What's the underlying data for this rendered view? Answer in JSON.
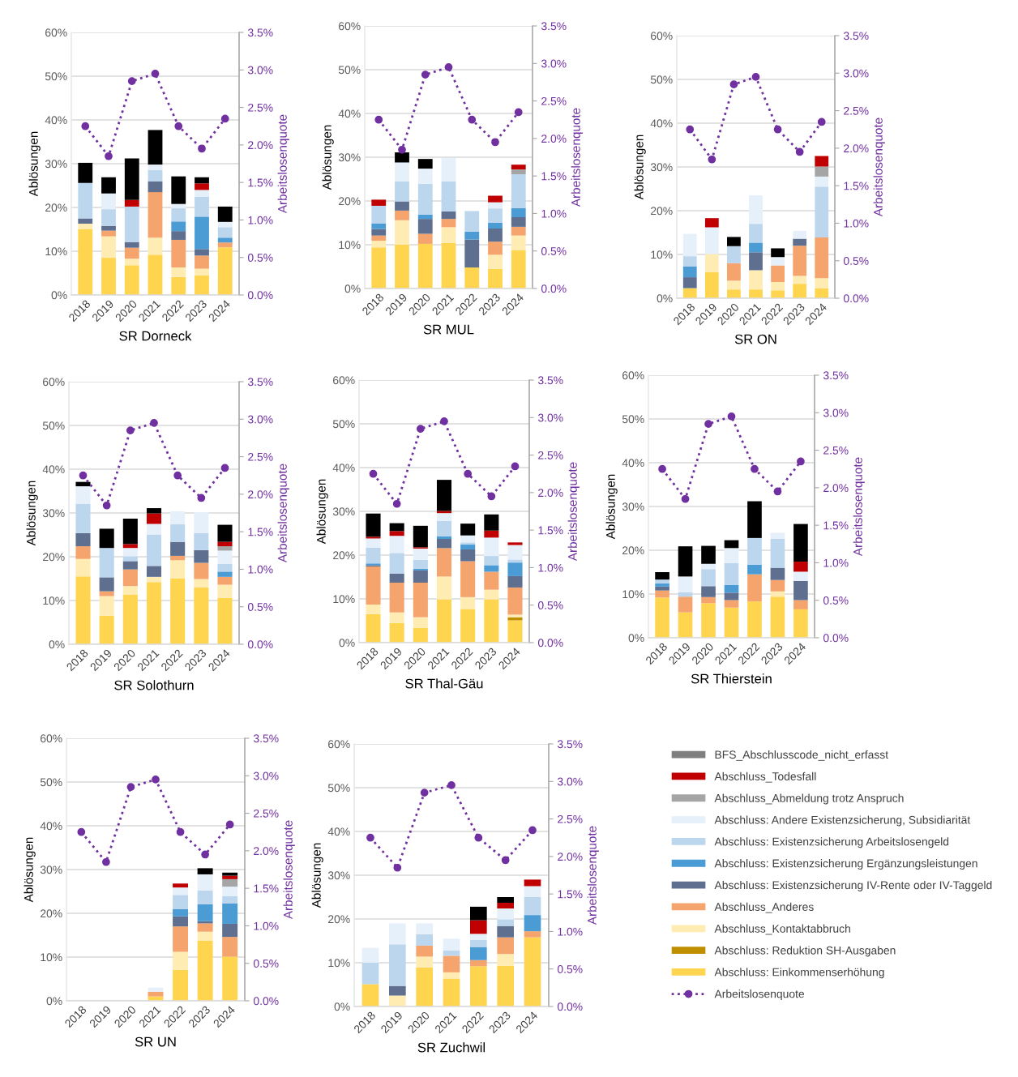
{
  "chart_data": [
    {
      "type": "bar",
      "stacked": true,
      "xlabel": "SR Dorneck",
      "ylabel": "Ablösungen",
      "y2label": "Arbeitslosenquote",
      "categories": [
        "2018",
        "2019",
        "2020",
        "2021",
        "2022",
        "2023",
        "2024"
      ],
      "ylim": [
        0,
        60
      ],
      "yticks": [
        {
          "value": 0,
          "label": "0%"
        },
        {
          "value": 10,
          "label": "10%"
        },
        {
          "value": 20,
          "label": "20%"
        },
        {
          "value": 30,
          "label": "30%"
        },
        {
          "value": 40,
          "label": "40%"
        },
        {
          "value": 50,
          "label": "50%"
        },
        {
          "value": 60,
          "label": "60%"
        }
      ],
      "y2lim": [
        0,
        3.5
      ],
      "y2ticks": [
        {
          "value": 0,
          "label": "0.0%"
        },
        {
          "value": 0.5,
          "label": "0.5%"
        },
        {
          "value": 1,
          "label": "1.0%"
        },
        {
          "value": 1.5,
          "label": "1.5%"
        },
        {
          "value": 2,
          "label": "2.0%"
        },
        {
          "value": 2.5,
          "label": "2.5%"
        },
        {
          "value": 3,
          "label": "3.0%"
        },
        {
          "value": 3.5,
          "label": "3.5%"
        }
      ],
      "grid": "y",
      "series": [
        {
          "color": "#ffd54f",
          "values": [
            15.1,
            8.5,
            6.8,
            9.2,
            4.1,
            4.5,
            10.9
          ]
        },
        {
          "color": "#bf8f00",
          "values": [
            0,
            0,
            0,
            0,
            0,
            0,
            0
          ]
        },
        {
          "color": "#ffecb3",
          "values": [
            1.2,
            4.9,
            1.5,
            3.9,
            2.2,
            1.5,
            0
          ]
        },
        {
          "color": "#f4a46c",
          "values": [
            0,
            1.3,
            2.5,
            10.4,
            6.3,
            3.0,
            1.1
          ]
        },
        {
          "color": "#5f6f8f",
          "values": [
            1.2,
            1.1,
            1.3,
            2.5,
            2.0,
            1.5,
            0
          ]
        },
        {
          "color": "#4b9bd5",
          "values": [
            0,
            0,
            0,
            0,
            2.2,
            7.4,
            1.1
          ]
        },
        {
          "color": "#bcd6ee",
          "values": [
            8.1,
            3.8,
            8.1,
            2.6,
            3.0,
            4.6,
            2.4
          ]
        },
        {
          "color": "#e6f0fa",
          "values": [
            0,
            3.6,
            0,
            1.2,
            1.0,
            1.5,
            1.2
          ]
        },
        {
          "color": "#a5a5a5",
          "values": [
            0,
            0,
            0,
            0,
            0,
            0,
            0
          ]
        },
        {
          "color": "#c00000",
          "values": [
            0,
            0,
            1.5,
            0,
            0,
            1.5,
            0
          ]
        },
        {
          "color": "#7f7f7f",
          "values": [
            0,
            0,
            0,
            0,
            0,
            0,
            0
          ]
        },
        {
          "color": "#000000",
          "values": [
            4.6,
            3.7,
            9.5,
            7.9,
            6.3,
            1.4,
            3.5
          ]
        },
        {
          "type": "line",
          "axis": "y2",
          "color": "#7030a0",
          "marker": "circle",
          "line_style": "dotted",
          "values": [
            2.25,
            1.85,
            2.85,
            2.95,
            2.25,
            1.95,
            2.35
          ]
        }
      ]
    },
    {
      "type": "bar",
      "stacked": true,
      "xlabel": "SR MUL",
      "ylabel": "Ablösungen",
      "y2label": "Arbeitslosenquote",
      "categories": [
        "2018",
        "2019",
        "2020",
        "2021",
        "2022",
        "2023",
        "2024"
      ],
      "ylim": [
        0,
        60
      ],
      "yticks": [
        {
          "value": 0,
          "label": "0%"
        },
        {
          "value": 10,
          "label": "10%"
        },
        {
          "value": 20,
          "label": "20%"
        },
        {
          "value": 30,
          "label": "30%"
        },
        {
          "value": 40,
          "label": "40%"
        },
        {
          "value": 50,
          "label": "50%"
        },
        {
          "value": 60,
          "label": "60%"
        }
      ],
      "y2lim": [
        0,
        3.5
      ],
      "y2ticks": [
        {
          "value": 0,
          "label": "0.0%"
        },
        {
          "value": 0.5,
          "label": "0.5%"
        },
        {
          "value": 1,
          "label": "1.0%"
        },
        {
          "value": 1.5,
          "label": "1.5%"
        },
        {
          "value": 2,
          "label": "2.0%"
        },
        {
          "value": 2.5,
          "label": "2.5%"
        },
        {
          "value": 3,
          "label": "3.0%"
        },
        {
          "value": 3.5,
          "label": "3.5%"
        }
      ],
      "grid": "y",
      "series": [
        {
          "color": "#ffd54f",
          "values": [
            9.4,
            10.0,
            10.2,
            10.4,
            4.8,
            4.5,
            8.7
          ]
        },
        {
          "color": "#bf8f00",
          "values": [
            0,
            0,
            0,
            0,
            0,
            0,
            0
          ]
        },
        {
          "color": "#ffecb3",
          "values": [
            1.5,
            5.6,
            0,
            3.6,
            0,
            3.2,
            3.4
          ]
        },
        {
          "color": "#f4a46c",
          "values": [
            1.2,
            2.2,
            2.3,
            1.9,
            0,
            3.0,
            2.0
          ]
        },
        {
          "color": "#5f6f8f",
          "values": [
            1.5,
            2.1,
            3.4,
            1.7,
            6.4,
            3.0,
            2.2
          ]
        },
        {
          "color": "#4b9bd5",
          "values": [
            1.3,
            0,
            1.0,
            0,
            1.8,
            1.3,
            2.1
          ]
        },
        {
          "color": "#bcd6ee",
          "values": [
            4.0,
            4.6,
            7.0,
            6.9,
            4.7,
            3.3,
            7.7
          ]
        },
        {
          "color": "#e6f0fa",
          "values": [
            0,
            4.3,
            3.5,
            5.3,
            0,
            1.4,
            0
          ]
        },
        {
          "color": "#a5a5a5",
          "values": [
            0,
            0,
            0,
            0,
            0,
            0,
            1.1
          ]
        },
        {
          "color": "#c00000",
          "values": [
            1.4,
            0,
            0,
            0,
            0,
            1.5,
            1.1
          ]
        },
        {
          "color": "#7f7f7f",
          "values": [
            0,
            0,
            0,
            0,
            0,
            0,
            0
          ]
        },
        {
          "color": "#000000",
          "values": [
            0,
            2.3,
            2.2,
            0,
            0,
            0,
            0
          ]
        },
        {
          "type": "line",
          "axis": "y2",
          "color": "#7030a0",
          "marker": "circle",
          "line_style": "dotted",
          "values": [
            2.25,
            1.85,
            2.85,
            2.95,
            2.25,
            1.95,
            2.35
          ]
        }
      ]
    },
    {
      "type": "bar",
      "stacked": true,
      "xlabel": "SR ON",
      "ylabel": "Ablösungen",
      "y2label": "Arbeitslosenquote",
      "categories": [
        "2018",
        "2019",
        "2020",
        "2021",
        "2022",
        "2023",
        "2024"
      ],
      "ylim": [
        0,
        60
      ],
      "yticks": [
        {
          "value": 0,
          "label": "0%"
        },
        {
          "value": 10,
          "label": "10%"
        },
        {
          "value": 20,
          "label": "20%"
        },
        {
          "value": 30,
          "label": "30%"
        },
        {
          "value": 40,
          "label": "40%"
        },
        {
          "value": 50,
          "label": "50%"
        },
        {
          "value": 60,
          "label": "60%"
        }
      ],
      "y2lim": [
        0,
        3.5
      ],
      "y2ticks": [
        {
          "value": 0,
          "label": "0.0%"
        },
        {
          "value": 0.5,
          "label": "0.5%"
        },
        {
          "value": 1,
          "label": "1.0%"
        },
        {
          "value": 1.5,
          "label": "1.5%"
        },
        {
          "value": 2,
          "label": "2.0%"
        },
        {
          "value": 2.5,
          "label": "2.5%"
        },
        {
          "value": 3,
          "label": "3.0%"
        },
        {
          "value": 3.5,
          "label": "3.5%"
        }
      ],
      "grid": "y",
      "series": [
        {
          "color": "#ffd54f",
          "values": [
            2.3,
            6.0,
            2.0,
            2.0,
            1.8,
            3.3,
            2.3
          ]
        },
        {
          "color": "#bf8f00",
          "values": [
            0,
            0,
            0,
            0,
            0,
            0,
            0
          ]
        },
        {
          "color": "#ffecb3",
          "values": [
            0,
            4.1,
            2.0,
            4.4,
            1.9,
            1.8,
            2.3
          ]
        },
        {
          "color": "#f4a46c",
          "values": [
            0,
            0,
            4.0,
            0,
            3.8,
            6.9,
            9.3
          ]
        },
        {
          "color": "#5f6f8f",
          "values": [
            2.5,
            0,
            0,
            4.1,
            0,
            1.6,
            0
          ]
        },
        {
          "color": "#4b9bd5",
          "values": [
            2.5,
            0,
            0,
            2.2,
            0,
            0,
            0
          ]
        },
        {
          "color": "#bcd6ee",
          "values": [
            2.3,
            0,
            3.9,
            4.3,
            0,
            0,
            11.6
          ]
        },
        {
          "color": "#e6f0fa",
          "values": [
            5.1,
            6.1,
            0,
            6.5,
            1.9,
            1.8,
            2.3
          ]
        },
        {
          "color": "#a5a5a5",
          "values": [
            0,
            0,
            0,
            0,
            0,
            0,
            2.3
          ]
        },
        {
          "color": "#c00000",
          "values": [
            0,
            2.1,
            0,
            0,
            0,
            0,
            2.4
          ]
        },
        {
          "color": "#7f7f7f",
          "values": [
            0,
            0,
            0,
            0,
            0,
            0,
            0
          ]
        },
        {
          "color": "#000000",
          "values": [
            0,
            0,
            2.1,
            0,
            2.0,
            0,
            0
          ]
        },
        {
          "type": "line",
          "axis": "y2",
          "color": "#7030a0",
          "marker": "circle",
          "line_style": "dotted",
          "values": [
            2.25,
            1.85,
            2.85,
            2.95,
            2.25,
            1.95,
            2.35
          ]
        }
      ]
    },
    {
      "type": "bar",
      "stacked": true,
      "xlabel": "SR Solothurn",
      "ylabel": "Ablösungen",
      "y2label": "Arbeitslosenquote",
      "categories": [
        "2018",
        "2019",
        "2020",
        "2021",
        "2022",
        "2023",
        "2024"
      ],
      "ylim": [
        0,
        60
      ],
      "yticks": [
        {
          "value": 0,
          "label": "0%"
        },
        {
          "value": 10,
          "label": "10%"
        },
        {
          "value": 20,
          "label": "20%"
        },
        {
          "value": 30,
          "label": "30%"
        },
        {
          "value": 40,
          "label": "40%"
        },
        {
          "value": 50,
          "label": "50%"
        },
        {
          "value": 60,
          "label": "60%"
        }
      ],
      "y2lim": [
        0,
        3.5
      ],
      "y2ticks": [
        {
          "value": 0,
          "label": "0.0%"
        },
        {
          "value": 0.5,
          "label": "0.5%"
        },
        {
          "value": 1,
          "label": "1.0%"
        },
        {
          "value": 1.5,
          "label": "1.5%"
        },
        {
          "value": 2,
          "label": "2.0%"
        },
        {
          "value": 2.5,
          "label": "2.5%"
        },
        {
          "value": 3,
          "label": "3.0%"
        },
        {
          "value": 3.5,
          "label": "3.5%"
        }
      ],
      "grid": "y",
      "series": [
        {
          "color": "#ffd54f",
          "values": [
            15.5,
            6.5,
            11.4,
            14.2,
            15.1,
            13.0,
            10.6
          ]
        },
        {
          "color": "#bf8f00",
          "values": [
            0,
            0,
            0,
            0,
            0,
            0,
            0
          ]
        },
        {
          "color": "#ffecb3",
          "values": [
            4.0,
            4.5,
            1.9,
            1.2,
            4.1,
            1.9,
            3.0
          ]
        },
        {
          "color": "#f4a46c",
          "values": [
            2.9,
            1.1,
            3.8,
            0,
            1.0,
            3.7,
            1.8
          ]
        },
        {
          "color": "#5f6f8f",
          "values": [
            3.0,
            3.2,
            1.9,
            2.5,
            3.2,
            2.9,
            0
          ]
        },
        {
          "color": "#4b9bd5",
          "values": [
            0,
            0,
            0,
            0,
            0,
            0,
            1.2
          ]
        },
        {
          "color": "#bcd6ee",
          "values": [
            6.7,
            6.7,
            1.1,
            7.2,
            4.0,
            3.9,
            1.8
          ]
        },
        {
          "color": "#e6f0fa",
          "values": [
            4.0,
            0,
            1.9,
            2.4,
            3.0,
            4.8,
            3.0
          ]
        },
        {
          "color": "#a5a5a5",
          "values": [
            0,
            0,
            0,
            0,
            0,
            0,
            1.0
          ]
        },
        {
          "color": "#c00000",
          "values": [
            0,
            0,
            0.9,
            2.4,
            0,
            0,
            1.0
          ]
        },
        {
          "color": "#7f7f7f",
          "values": [
            0,
            0,
            0,
            0,
            0,
            0,
            0
          ]
        },
        {
          "color": "#000000",
          "values": [
            1.0,
            4.4,
            5.8,
            1.2,
            0,
            0,
            3.9
          ]
        },
        {
          "type": "line",
          "axis": "y2",
          "color": "#7030a0",
          "marker": "circle",
          "line_style": "dotted",
          "values": [
            2.25,
            1.85,
            2.85,
            2.95,
            2.25,
            1.95,
            2.35
          ]
        }
      ]
    },
    {
      "type": "bar",
      "stacked": true,
      "xlabel": "SR Thal-Gäu",
      "ylabel": "Ablösungen",
      "y2label": "Arbeitslosenquote",
      "categories": [
        "2018",
        "2019",
        "2020",
        "2021",
        "2022",
        "2023",
        "2024"
      ],
      "ylim": [
        0,
        60
      ],
      "yticks": [
        {
          "value": 0,
          "label": "0%"
        },
        {
          "value": 10,
          "label": "10%"
        },
        {
          "value": 20,
          "label": "20%"
        },
        {
          "value": 30,
          "label": "30%"
        },
        {
          "value": 40,
          "label": "40%"
        },
        {
          "value": 50,
          "label": "50%"
        },
        {
          "value": 60,
          "label": "60%"
        }
      ],
      "y2lim": [
        0,
        3.5
      ],
      "y2ticks": [
        {
          "value": 0,
          "label": "0.0%"
        },
        {
          "value": 0.5,
          "label": "0.5%"
        },
        {
          "value": 1,
          "label": "1.0%"
        },
        {
          "value": 1.5,
          "label": "1.5%"
        },
        {
          "value": 2,
          "label": "2.0%"
        },
        {
          "value": 2.5,
          "label": "2.5%"
        },
        {
          "value": 3,
          "label": "3.0%"
        },
        {
          "value": 3.5,
          "label": "3.5%"
        }
      ],
      "grid": "y",
      "series": [
        {
          "color": "#ffd54f",
          "values": [
            6.5,
            4.5,
            3.4,
            9.9,
            7.7,
            9.9,
            5.1
          ]
        },
        {
          "color": "#bf8f00",
          "values": [
            0,
            0,
            0,
            0,
            0,
            0,
            0.7
          ]
        },
        {
          "color": "#ffecb3",
          "values": [
            2.2,
            2.4,
            2.4,
            5.2,
            2.7,
            2.2,
            0.6
          ]
        },
        {
          "color": "#f4a46c",
          "values": [
            8.7,
            6.8,
            7.9,
            6.5,
            8.2,
            4.1,
            6.2
          ]
        },
        {
          "color": "#5f6f8f",
          "values": [
            0.3,
            2.1,
            2.8,
            2.1,
            2.7,
            0,
            2.6
          ]
        },
        {
          "color": "#4b9bd5",
          "values": [
            0.4,
            0,
            0.4,
            0.6,
            1.1,
            1.5,
            3.1
          ]
        },
        {
          "color": "#bcd6ee",
          "values": [
            3.6,
            4.7,
            2.0,
            3.5,
            0.5,
            2.1,
            0.7
          ]
        },
        {
          "color": "#e6f0fa",
          "values": [
            2.1,
            3.9,
            2.6,
            1.8,
            1.6,
            4.2,
            3.3
          ]
        },
        {
          "color": "#a5a5a5",
          "values": [
            0,
            0,
            0,
            0,
            0,
            0,
            0
          ]
        },
        {
          "color": "#c00000",
          "values": [
            0.4,
            1.1,
            0.3,
            0.5,
            0,
            1.6,
            0.6
          ]
        },
        {
          "color": "#7f7f7f",
          "values": [
            0,
            0,
            0,
            0,
            0,
            0,
            0
          ]
        },
        {
          "color": "#000000",
          "values": [
            5.3,
            1.8,
            4.9,
            7.1,
            2.7,
            3.7,
            0
          ]
        },
        {
          "type": "line",
          "axis": "y2",
          "color": "#7030a0",
          "marker": "circle",
          "line_style": "dotted",
          "values": [
            2.25,
            1.85,
            2.85,
            2.95,
            2.25,
            1.95,
            2.35
          ]
        }
      ]
    },
    {
      "type": "bar",
      "stacked": true,
      "xlabel": "SR Thierstein",
      "ylabel": "Ablösungen",
      "y2label": "Arbeitslosenquote",
      "categories": [
        "2018",
        "2019",
        "2020",
        "2021",
        "2022",
        "2023",
        "2024"
      ],
      "ylim": [
        0,
        60
      ],
      "yticks": [
        {
          "value": 0,
          "label": "0%"
        },
        {
          "value": 10,
          "label": "10%"
        },
        {
          "value": 20,
          "label": "20%"
        },
        {
          "value": 30,
          "label": "30%"
        },
        {
          "value": 40,
          "label": "40%"
        },
        {
          "value": 50,
          "label": "50%"
        },
        {
          "value": 60,
          "label": "60%"
        }
      ],
      "y2lim": [
        0,
        3.5
      ],
      "y2ticks": [
        {
          "value": 0,
          "label": "0.0%"
        },
        {
          "value": 0.5,
          "label": "0.5%"
        },
        {
          "value": 1,
          "label": "1.0%"
        },
        {
          "value": 1.5,
          "label": "1.5%"
        },
        {
          "value": 2,
          "label": "2.0%"
        },
        {
          "value": 2.5,
          "label": "2.5%"
        },
        {
          "value": 3,
          "label": "3.0%"
        },
        {
          "value": 3.5,
          "label": "3.5%"
        }
      ],
      "grid": "y",
      "series": [
        {
          "color": "#ffd54f",
          "values": [
            9.2,
            5.8,
            7.9,
            6.9,
            8.3,
            9.4,
            6.5
          ]
        },
        {
          "color": "#bf8f00",
          "values": [
            0,
            0,
            0,
            0,
            0,
            0,
            0
          ]
        },
        {
          "color": "#ffecb3",
          "values": [
            0,
            0,
            0,
            0,
            0,
            1.2,
            0
          ]
        },
        {
          "color": "#f4a46c",
          "values": [
            1.6,
            3.6,
            1.4,
            1.7,
            6.2,
            2.6,
            2.1
          ]
        },
        {
          "color": "#5f6f8f",
          "values": [
            0.9,
            0,
            2.5,
            1.7,
            0,
            2.8,
            4.4
          ]
        },
        {
          "color": "#4b9bd5",
          "values": [
            0.7,
            0,
            0,
            1.8,
            2.2,
            0,
            0
          ]
        },
        {
          "color": "#bcd6ee",
          "values": [
            0.9,
            1.0,
            3.9,
            5.0,
            6.1,
            6.6,
            0
          ]
        },
        {
          "color": "#e6f0fa",
          "values": [
            0,
            3.6,
            1.2,
            3.4,
            0,
            1.4,
            2.1
          ]
        },
        {
          "color": "#a5a5a5",
          "values": [
            0,
            0,
            0,
            0,
            0,
            0,
            0
          ]
        },
        {
          "color": "#c00000",
          "values": [
            0,
            0,
            0,
            0,
            0,
            0,
            2.3
          ]
        },
        {
          "color": "#7f7f7f",
          "values": [
            0,
            0,
            0,
            0,
            0,
            0,
            0
          ]
        },
        {
          "color": "#000000",
          "values": [
            1.7,
            6.9,
            4.1,
            1.8,
            8.4,
            0,
            8.6
          ]
        },
        {
          "type": "line",
          "axis": "y2",
          "color": "#7030a0",
          "marker": "circle",
          "line_style": "dotted",
          "values": [
            2.25,
            1.85,
            2.85,
            2.95,
            2.25,
            1.95,
            2.35
          ]
        }
      ]
    },
    {
      "type": "bar",
      "stacked": true,
      "xlabel": "SR UN",
      "ylabel": "Ablösungen",
      "y2label": "Arbeitslosenquote",
      "categories": [
        "2018",
        "2019",
        "2020",
        "2021",
        "2022",
        "2023",
        "2024"
      ],
      "ylim": [
        0,
        60
      ],
      "yticks": [
        {
          "value": 0,
          "label": "0%"
        },
        {
          "value": 10,
          "label": "10%"
        },
        {
          "value": 20,
          "label": "20%"
        },
        {
          "value": 30,
          "label": "30%"
        },
        {
          "value": 40,
          "label": "40%"
        },
        {
          "value": 50,
          "label": "50%"
        },
        {
          "value": 60,
          "label": "60%"
        }
      ],
      "y2lim": [
        0,
        3.5
      ],
      "y2ticks": [
        {
          "value": 0,
          "label": "0.0%"
        },
        {
          "value": 0.5,
          "label": "0.5%"
        },
        {
          "value": 1,
          "label": "1.0%"
        },
        {
          "value": 1.5,
          "label": "1.5%"
        },
        {
          "value": 2,
          "label": "2.0%"
        },
        {
          "value": 2.5,
          "label": "2.5%"
        },
        {
          "value": 3,
          "label": "3.0%"
        },
        {
          "value": 3.5,
          "label": "3.5%"
        }
      ],
      "grid": "y",
      "series": [
        {
          "color": "#ffd54f",
          "values": [
            0,
            0,
            0,
            1.0,
            7.1,
            13.8,
            10.1
          ]
        },
        {
          "color": "#bf8f00",
          "values": [
            0,
            0,
            0,
            0,
            0,
            0,
            0
          ]
        },
        {
          "color": "#ffecb3",
          "values": [
            0,
            0,
            0,
            0,
            4.1,
            2.0,
            0
          ]
        },
        {
          "color": "#f4a46c",
          "values": [
            0,
            0,
            0,
            1.1,
            5.8,
            1.9,
            4.5
          ]
        },
        {
          "color": "#5f6f8f",
          "values": [
            0,
            0,
            0,
            0,
            2.3,
            0.5,
            3.0
          ]
        },
        {
          "color": "#4b9bd5",
          "values": [
            0,
            0,
            0,
            0,
            1.7,
            3.9,
            4.7
          ]
        },
        {
          "color": "#bcd6ee",
          "values": [
            0,
            0,
            0,
            0,
            3.2,
            3.1,
            1.6
          ]
        },
        {
          "color": "#e6f0fa",
          "values": [
            0,
            0,
            0,
            0.9,
            1.7,
            3.7,
            2.2
          ]
        },
        {
          "color": "#a5a5a5",
          "values": [
            0,
            0,
            0,
            0,
            0,
            0,
            1.7
          ]
        },
        {
          "color": "#c00000",
          "values": [
            0,
            0,
            0,
            0,
            0.9,
            0,
            0.8
          ]
        },
        {
          "color": "#7f7f7f",
          "values": [
            0,
            0,
            0,
            0,
            0,
            0,
            0
          ]
        },
        {
          "color": "#000000",
          "values": [
            0,
            0,
            0,
            0,
            0,
            1.4,
            0.7
          ]
        },
        {
          "type": "line",
          "axis": "y2",
          "color": "#7030a0",
          "marker": "circle",
          "line_style": "dotted",
          "values": [
            2.25,
            1.85,
            2.85,
            2.95,
            2.25,
            1.95,
            2.35
          ]
        }
      ]
    },
    {
      "type": "bar",
      "stacked": true,
      "xlabel": "SR Zuchwil",
      "ylabel": "Ablösungen",
      "y2label": "Arbeitslosenquote",
      "legend": "right",
      "categories": [
        "2018",
        "2019",
        "2020",
        "2021",
        "2022",
        "2023",
        "2024"
      ],
      "ylim": [
        0,
        60
      ],
      "yticks": [
        {
          "value": 0,
          "label": "0%"
        },
        {
          "value": 10,
          "label": "10%"
        },
        {
          "value": 20,
          "label": "20%"
        },
        {
          "value": 30,
          "label": "30%"
        },
        {
          "value": 40,
          "label": "40%"
        },
        {
          "value": 50,
          "label": "50%"
        },
        {
          "value": 60,
          "label": "60%"
        }
      ],
      "y2lim": [
        0,
        3.5
      ],
      "y2ticks": [
        {
          "value": 0,
          "label": "0.0%"
        },
        {
          "value": 0.5,
          "label": "0.5%"
        },
        {
          "value": 1,
          "label": "1.0%"
        },
        {
          "value": 1.5,
          "label": "1.5%"
        },
        {
          "value": 2,
          "label": "2.0%"
        },
        {
          "value": 2.5,
          "label": "2.5%"
        },
        {
          "value": 3,
          "label": "3.0%"
        },
        {
          "value": 3.5,
          "label": "3.5%"
        }
      ],
      "grid": "y",
      "series": [
        {
          "name": "Abschluss: Einkommenserhöhung",
          "color": "#ffd54f",
          "values": [
            5.1,
            0,
            8.9,
            6.4,
            9.2,
            9.3,
            15.8
          ]
        },
        {
          "name": "Abschluss: Reduktion SH-Ausgaben",
          "color": "#bf8f00",
          "values": [
            0,
            0,
            0,
            0,
            0,
            0,
            0
          ]
        },
        {
          "name": "Abschluss_Kontaktabbruch",
          "color": "#ffecb3",
          "values": [
            0,
            2.5,
            2.5,
            1.4,
            0,
            2.7,
            0
          ]
        },
        {
          "name": "Abschluss_Anderes",
          "color": "#f4a46c",
          "values": [
            0,
            0,
            2.5,
            3.8,
            1.4,
            3.8,
            1.4
          ]
        },
        {
          "name": "Abschluss: Existenzsicherung IV-Rente oder IV-Taggeld",
          "color": "#5f6f8f",
          "values": [
            0,
            2.2,
            0,
            0,
            0,
            2.6,
            0
          ]
        },
        {
          "name": "Abschluss: Existenzsicherung Ergänzungsleistungen",
          "color": "#4b9bd5",
          "values": [
            0,
            0,
            0,
            0,
            3.0,
            0,
            3.7
          ]
        },
        {
          "name": "Abschluss: Existenzsicherung Arbeitslosengeld",
          "color": "#bcd6ee",
          "values": [
            4.9,
            9.5,
            2.6,
            1.2,
            1.6,
            1.5,
            4.1
          ]
        },
        {
          "name": "Abschluss: Andere Existenzsicherung, Subsidiarität",
          "color": "#e6f0fa",
          "values": [
            3.4,
            4.8,
            2.5,
            2.7,
            1.4,
            2.5,
            2.5
          ]
        },
        {
          "name": "Abschluss_Abmeldung trotz Anspruch",
          "color": "#a5a5a5",
          "values": [
            0,
            0,
            0,
            0,
            0,
            0,
            0
          ]
        },
        {
          "name": "Abschluss_Todesfall",
          "color": "#c00000",
          "values": [
            0,
            0,
            0,
            0,
            3.1,
            1.3,
            1.5
          ]
        },
        {
          "name": "BFS_Abschlusscode_nicht_erfasst",
          "color": "#7f7f7f",
          "values": [
            0,
            0,
            0,
            0,
            0,
            0,
            0
          ]
        },
        {
          "color": "#000000",
          "values": [
            0,
            0,
            0,
            0,
            3.1,
            1.3,
            0
          ]
        },
        {
          "name": "Arbeitslosenquote",
          "type": "line",
          "axis": "y2",
          "color": "#7030a0",
          "marker": "circle",
          "line_style": "dotted",
          "values": [
            2.25,
            1.85,
            2.85,
            2.95,
            2.25,
            1.95,
            2.35
          ]
        }
      ]
    }
  ]
}
